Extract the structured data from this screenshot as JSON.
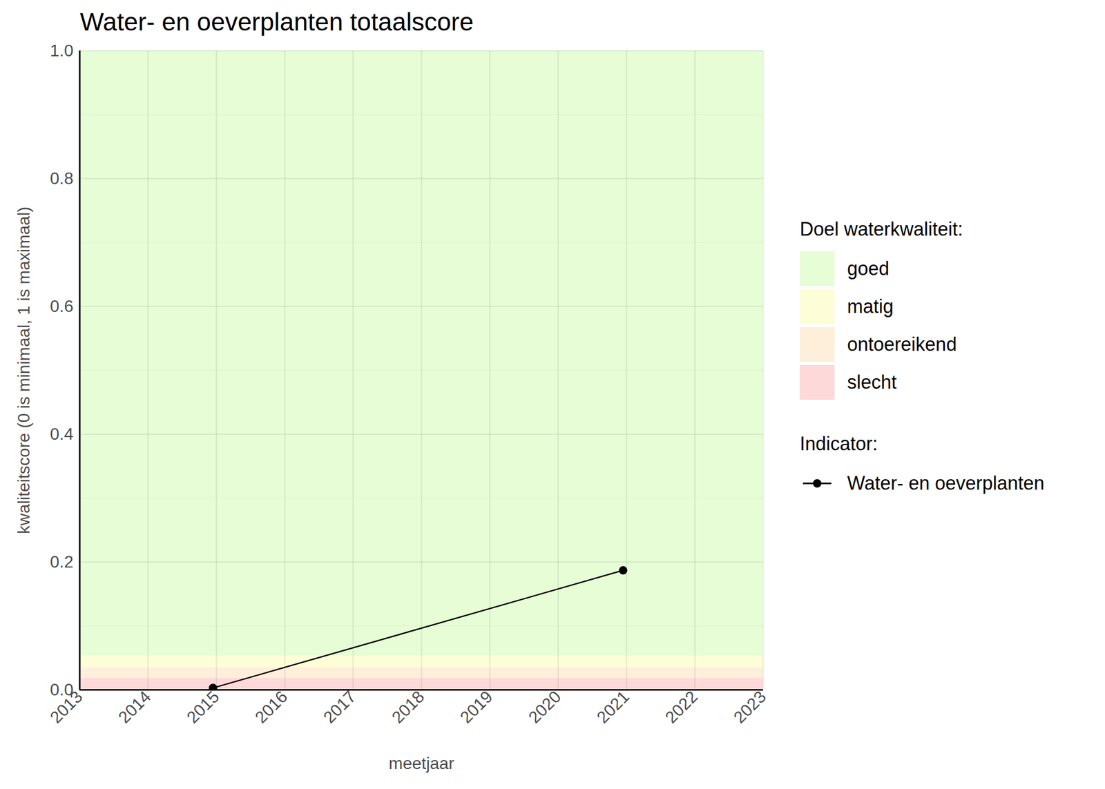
{
  "chart_data": {
    "type": "line",
    "title": "Water- en oeverplanten totaalscore",
    "xlabel": "meetjaar",
    "ylabel": "kwaliteitscore (0 is minimaal, 1 is maximaal)",
    "x": [
      2014.95,
      2020.95
    ],
    "series": [
      {
        "name": "Water- en oeverplanten",
        "color": "#000000",
        "marker": "circle",
        "line_style": "solid",
        "values": [
          0.003,
          0.187
        ]
      }
    ],
    "series_title": "Indicator:",
    "bands_title": "Doel waterkwaliteit:",
    "bands": [
      {
        "name": "goed",
        "color": "#e6fdd6",
        "from": 0.053,
        "to": 1.0
      },
      {
        "name": "matig",
        "color": "#fdfdd8",
        "from": 0.035,
        "to": 0.053
      },
      {
        "name": "ontoereikend",
        "color": "#fdefda",
        "from": 0.018,
        "to": 0.035
      },
      {
        "name": "slecht",
        "color": "#fdd9d9",
        "from": 0.0,
        "to": 0.018
      }
    ],
    "xlim": [
      2013,
      2023
    ],
    "xticks": [
      2013,
      2014,
      2015,
      2016,
      2017,
      2018,
      2019,
      2020,
      2021,
      2022,
      2023
    ],
    "ylim": [
      0.0,
      1.0
    ],
    "yticks": [
      {
        "value": 0.0,
        "label": "0.0"
      },
      {
        "value": 0.2,
        "label": "0.2"
      },
      {
        "value": 0.4,
        "label": "0.4"
      },
      {
        "value": 0.6,
        "label": "0.6"
      },
      {
        "value": 0.8,
        "label": "0.8"
      },
      {
        "value": 1.0,
        "label": "1.0"
      }
    ],
    "grid": true,
    "legend": "right"
  }
}
